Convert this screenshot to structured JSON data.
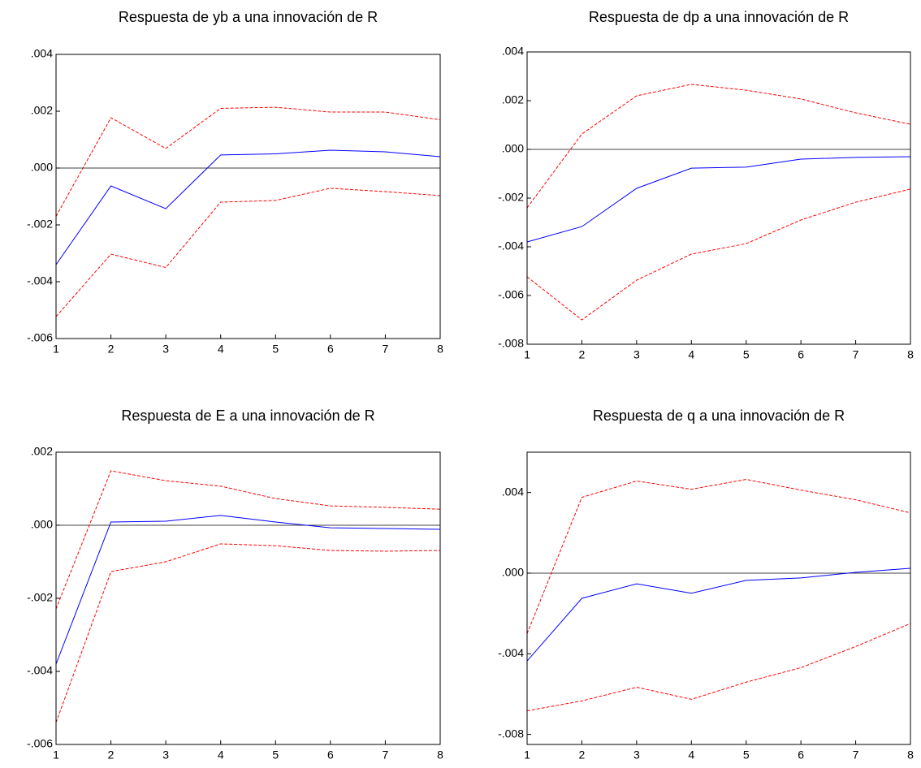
{
  "chart_data": [
    {
      "type": "line",
      "title": "Respuesta de yb a una innovación de R",
      "x": [
        1,
        2,
        3,
        4,
        5,
        6,
        7,
        8
      ],
      "xlim": [
        1,
        8
      ],
      "xticks": [
        1,
        2,
        3,
        4,
        5,
        6,
        7,
        8
      ],
      "ylim": [
        -0.006,
        0.004
      ],
      "yticks": [
        {
          "value": -0.006,
          "label": "-.006"
        },
        {
          "value": -0.004,
          "label": "-.004"
        },
        {
          "value": -0.002,
          "label": "-.002"
        },
        {
          "value": 0,
          "label": ".000"
        },
        {
          "value": 0.002,
          "label": ".002"
        },
        {
          "value": 0.004,
          "label": ".004"
        }
      ],
      "zero_line": true,
      "series": [
        {
          "color": "#0000ff",
          "dashed": false,
          "values": [
            -0.0034,
            -0.00063,
            -0.00143,
            0.00046,
            0.0005,
            0.00063,
            0.00057,
            0.0004
          ]
        },
        {
          "color": "#ff0000",
          "dashed": true,
          "values": [
            -0.0017,
            0.00177,
            0.00069,
            0.0021,
            0.00214,
            0.00197,
            0.00197,
            0.0017
          ]
        },
        {
          "color": "#ff0000",
          "dashed": true,
          "values": [
            -0.00523,
            -0.00303,
            -0.0035,
            -0.0012,
            -0.00114,
            -0.00071,
            -0.00083,
            -0.00097
          ]
        }
      ]
    },
    {
      "type": "line",
      "title": "Respuesta de dp a una innovación de R",
      "x": [
        1,
        2,
        3,
        4,
        5,
        6,
        7,
        8
      ],
      "xlim": [
        1,
        8
      ],
      "xticks": [
        1,
        2,
        3,
        4,
        5,
        6,
        7,
        8
      ],
      "ylim": [
        -0.008,
        0.004
      ],
      "yticks": [
        {
          "value": -0.008,
          "label": "-.008"
        },
        {
          "value": -0.006,
          "label": "-.006"
        },
        {
          "value": -0.004,
          "label": "-.004"
        },
        {
          "value": -0.002,
          "label": "-.002"
        },
        {
          "value": 0,
          "label": ".000"
        },
        {
          "value": 0.002,
          "label": ".002"
        },
        {
          "value": 0.004,
          "label": ".004"
        }
      ],
      "zero_line": true,
      "series": [
        {
          "color": "#0000ff",
          "dashed": false,
          "values": [
            -0.0038,
            -0.00317,
            -0.0016,
            -0.00077,
            -0.00073,
            -0.0004,
            -0.00033,
            -0.0003
          ]
        },
        {
          "color": "#ff0000",
          "dashed": true,
          "values": [
            -0.0024,
            0.00063,
            0.0022,
            0.00267,
            0.00243,
            0.00207,
            0.0015,
            0.00103
          ]
        },
        {
          "color": "#ff0000",
          "dashed": true,
          "values": [
            -0.00523,
            -0.007,
            -0.00537,
            -0.0043,
            -0.00387,
            -0.0029,
            -0.00217,
            -0.00163
          ]
        }
      ]
    },
    {
      "type": "line",
      "title": "Respuesta de E a una innovación de R",
      "x": [
        1,
        2,
        3,
        4,
        5,
        6,
        7,
        8
      ],
      "xlim": [
        1,
        8
      ],
      "xticks": [
        1,
        2,
        3,
        4,
        5,
        6,
        7,
        8
      ],
      "ylim": [
        -0.006,
        0.002
      ],
      "yticks": [
        {
          "value": -0.006,
          "label": "-.006"
        },
        {
          "value": -0.004,
          "label": "-.004"
        },
        {
          "value": -0.002,
          "label": "-.002"
        },
        {
          "value": 0,
          "label": ".000"
        },
        {
          "value": 0.002,
          "label": ".002"
        }
      ],
      "zero_line": true,
      "series": [
        {
          "color": "#0000ff",
          "dashed": false,
          "values": [
            -0.0038,
            9e-05,
            0.00011,
            0.00027,
            9e-05,
            -7e-05,
            -9e-05,
            -0.00011
          ]
        },
        {
          "color": "#ff0000",
          "dashed": true,
          "values": [
            -0.00229,
            0.00149,
            0.00122,
            0.00107,
            0.00073,
            0.00053,
            0.00049,
            0.00044
          ]
        },
        {
          "color": "#ff0000",
          "dashed": true,
          "values": [
            -0.0054,
            -0.00127,
            -0.001,
            -0.00051,
            -0.00056,
            -0.00069,
            -0.00071,
            -0.00069
          ]
        }
      ]
    },
    {
      "type": "line",
      "title": "Respuesta de q a una innovación de R",
      "x": [
        1,
        2,
        3,
        4,
        5,
        6,
        7,
        8
      ],
      "xlim": [
        1,
        8
      ],
      "xticks": [
        1,
        2,
        3,
        4,
        5,
        6,
        7,
        8
      ],
      "ylim": [
        -0.0085,
        0.006
      ],
      "yticks": [
        {
          "value": -0.008,
          "label": "-.008"
        },
        {
          "value": -0.004,
          "label": "-.004"
        },
        {
          "value": 0,
          "label": ".000"
        },
        {
          "value": 0.004,
          "label": ".004"
        }
      ],
      "zero_line": true,
      "series": [
        {
          "color": "#0000ff",
          "dashed": false,
          "values": [
            -0.00436,
            -0.00125,
            -0.00053,
            -0.001,
            -0.00036,
            -0.00024,
            4e-05,
            0.00024
          ]
        },
        {
          "color": "#ff0000",
          "dashed": true,
          "values": [
            -0.003,
            0.00376,
            0.00457,
            0.00416,
            0.00465,
            0.00412,
            0.00364,
            0.00299
          ]
        },
        {
          "color": "#ff0000",
          "dashed": true,
          "values": [
            -0.00683,
            -0.00634,
            -0.00566,
            -0.00626,
            -0.00541,
            -0.00469,
            -0.00364,
            -0.0025
          ]
        }
      ]
    }
  ]
}
